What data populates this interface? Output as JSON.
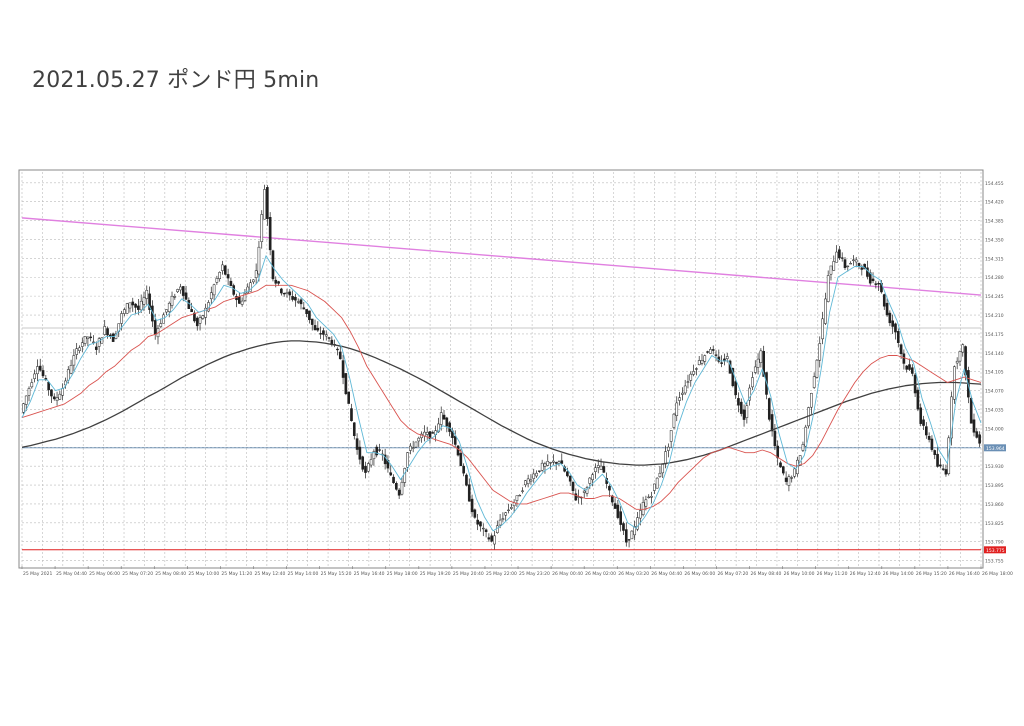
{
  "page_title": "2021.05.27  ポンド円 5min",
  "chart_data": {
    "type": "line",
    "title": "2021.05.27  ポンド円 5min",
    "xlabel": "",
    "ylabel": "",
    "grid": true,
    "ylim": [
      153.745,
      154.475
    ],
    "price_ticks": [
      "154.455",
      "154.420",
      "154.385",
      "154.350",
      "154.315",
      "154.280",
      "154.245",
      "154.210",
      "154.175",
      "154.140",
      "154.105",
      "154.070",
      "154.035",
      "154.000",
      "153.965",
      "153.930",
      "153.895",
      "153.860",
      "153.825",
      "153.790",
      "153.755"
    ],
    "x_tick_labels": [
      "25 May 2021",
      "25 May 04:40",
      "25 May 06:00",
      "25 May 07:20",
      "25 May 08:40",
      "25 May 10:00",
      "25 May 11:20",
      "25 May 12:40",
      "25 May 14:00",
      "25 May 15:20",
      "25 May 16:40",
      "25 May 18:00",
      "25 May 19:20",
      "25 May 20:40",
      "25 May 22:00",
      "25 May 23:20",
      "26 May 00:40",
      "26 May 02:00",
      "26 May 03:20",
      "26 May 04:40",
      "26 May 06:00",
      "26 May 07:20",
      "26 May 08:40",
      "26 May 10:00",
      "26 May 11:20",
      "26 May 12:40",
      "26 May 14:00",
      "26 May 15:20",
      "26 May 16:40",
      "26 May 18:00"
    ],
    "current_price": "153.964",
    "current_price_value": 153.964,
    "support_price": "153.775",
    "support_price_value": 153.775,
    "colors": {
      "candles": "#202020",
      "fast_ma": "#5fb8d6",
      "mid_ma": "#d9534f",
      "slow_ma": "#404040",
      "trendline": "#e080e0",
      "support": "#e02020",
      "current": "#6a8fb5",
      "grid": "#bbbbbb",
      "hline": "#c8c8c8"
    },
    "trendline": {
      "start": 154.39,
      "end": 154.247
    },
    "horizontal_level": 154.186,
    "price_path": [
      154.03,
      154.075,
      154.12,
      154.085,
      154.05,
      154.075,
      154.12,
      154.155,
      154.17,
      154.15,
      154.185,
      154.165,
      154.21,
      154.235,
      154.22,
      154.25,
      154.175,
      154.21,
      154.24,
      154.265,
      154.225,
      154.19,
      154.22,
      154.265,
      154.3,
      154.26,
      154.23,
      154.26,
      154.29,
      154.445,
      154.28,
      154.255,
      154.245,
      154.235,
      154.215,
      154.18,
      154.175,
      154.16,
      154.13,
      154.04,
      153.96,
      153.915,
      153.96,
      153.95,
      153.91,
      153.88,
      153.955,
      153.975,
      153.99,
      153.985,
      154.025,
      154.0,
      153.955,
      153.89,
      153.83,
      153.81,
      153.79,
      153.83,
      153.85,
      153.87,
      153.9,
      153.915,
      153.93,
      153.935,
      153.94,
      153.91,
      153.87,
      153.88,
      153.92,
      153.93,
      153.88,
      153.84,
      153.79,
      153.815,
      153.86,
      153.88,
      153.92,
      153.97,
      154.05,
      154.08,
      154.11,
      154.13,
      154.15,
      154.12,
      154.13,
      154.06,
      154.02,
      154.1,
      154.14,
      154.02,
      153.94,
      153.9,
      153.92,
      153.97,
      154.07,
      154.16,
      154.28,
      154.33,
      154.3,
      154.31,
      154.3,
      154.275,
      154.27,
      154.21,
      154.18,
      154.12,
      154.1,
      154.01,
      153.98,
      153.93,
      153.92,
      154.12,
      154.15,
      154.01,
      153.975
    ],
    "fast_ma_path": [
      154.02,
      154.05,
      154.09,
      154.09,
      154.07,
      154.075,
      154.1,
      154.13,
      154.155,
      154.16,
      154.17,
      154.17,
      154.19,
      154.21,
      154.215,
      154.23,
      154.2,
      154.205,
      154.22,
      154.24,
      154.23,
      154.215,
      154.22,
      154.24,
      154.265,
      154.26,
      154.25,
      154.255,
      154.27,
      154.32,
      154.295,
      154.275,
      154.26,
      154.245,
      154.23,
      154.205,
      154.19,
      154.175,
      154.15,
      154.09,
      154.02,
      153.955,
      153.955,
      153.95,
      153.93,
      153.905,
      153.93,
      153.955,
      153.975,
      153.985,
      154.005,
      154.0,
      153.975,
      153.925,
      153.87,
      153.835,
      153.81,
      153.82,
      153.835,
      153.855,
      153.88,
      153.9,
      153.92,
      153.93,
      153.935,
      153.92,
      153.895,
      153.885,
      153.9,
      153.915,
      153.895,
      153.865,
      153.825,
      153.815,
      153.835,
      153.86,
      153.895,
      153.94,
      154.005,
      154.05,
      154.085,
      154.11,
      154.135,
      154.125,
      154.125,
      154.085,
      154.045,
      154.07,
      154.11,
      154.06,
      153.99,
      153.935,
      153.925,
      153.95,
      154.02,
      154.11,
      154.215,
      154.28,
      154.29,
      154.3,
      154.3,
      154.285,
      154.275,
      154.235,
      154.2,
      154.15,
      154.12,
      154.055,
      154.01,
      153.96,
      153.935,
      154.05,
      154.11,
      154.05,
      154.01
    ],
    "mid_ma_path": [
      154.02,
      154.025,
      154.03,
      154.035,
      154.04,
      154.045,
      154.055,
      154.065,
      154.08,
      154.09,
      154.105,
      154.115,
      154.13,
      154.145,
      154.155,
      154.17,
      154.175,
      154.185,
      154.195,
      154.205,
      154.21,
      154.215,
      154.22,
      154.225,
      154.235,
      154.24,
      154.245,
      154.25,
      154.255,
      154.265,
      154.265,
      154.265,
      154.265,
      154.26,
      154.255,
      154.245,
      154.235,
      154.22,
      154.205,
      154.18,
      154.15,
      154.115,
      154.09,
      154.065,
      154.04,
      154.015,
      154.0,
      153.99,
      153.985,
      153.98,
      153.975,
      153.97,
      153.96,
      153.945,
      153.925,
      153.905,
      153.885,
      153.875,
      153.865,
      153.86,
      153.86,
      153.865,
      153.87,
      153.875,
      153.88,
      153.88,
      153.875,
      153.87,
      153.87,
      153.875,
      153.875,
      153.87,
      153.86,
      153.85,
      153.85,
      153.855,
      153.865,
      153.88,
      153.9,
      153.915,
      153.93,
      153.945,
      153.955,
      153.96,
      153.965,
      153.96,
      153.955,
      153.955,
      153.96,
      153.955,
      153.945,
      153.935,
      153.93,
      153.935,
      153.95,
      153.975,
      154.005,
      154.035,
      154.06,
      154.085,
      154.105,
      154.12,
      154.13,
      154.135,
      154.135,
      154.13,
      154.125,
      154.115,
      154.105,
      154.095,
      154.085,
      154.09,
      154.095,
      154.09,
      154.085
    ],
    "slow_ma_path": [
      153.965,
      153.968,
      153.972,
      153.976,
      153.98,
      153.985,
      153.99,
      153.996,
      154.002,
      154.009,
      154.016,
      154.024,
      154.032,
      154.041,
      154.05,
      154.059,
      154.067,
      154.076,
      154.085,
      154.094,
      154.102,
      154.11,
      154.118,
      154.125,
      154.132,
      154.138,
      154.143,
      154.148,
      154.152,
      154.156,
      154.159,
      154.161,
      154.162,
      154.162,
      154.161,
      154.16,
      154.158,
      154.155,
      154.152,
      154.148,
      154.143,
      154.137,
      154.131,
      154.124,
      154.117,
      154.11,
      154.102,
      154.094,
      154.086,
      154.077,
      154.068,
      154.059,
      154.05,
      154.041,
      154.032,
      154.023,
      154.014,
      154.005,
      153.997,
      153.989,
      153.981,
      153.974,
      153.968,
      153.962,
      153.957,
      153.952,
      153.948,
      153.944,
      153.941,
      153.938,
      153.936,
      153.934,
      153.933,
      153.932,
      153.932,
      153.933,
      153.934,
      153.936,
      153.939,
      153.942,
      153.946,
      153.95,
      153.955,
      153.96,
      153.966,
      153.972,
      153.978,
      153.984,
      153.99,
      153.996,
      154.002,
      154.008,
      154.014,
      154.02,
      154.026,
      154.032,
      154.038,
      154.044,
      154.05,
      154.055,
      154.06,
      154.065,
      154.069,
      154.073,
      154.076,
      154.079,
      154.081,
      154.083,
      154.084,
      154.085,
      154.085,
      154.085,
      154.084,
      154.083,
      154.082
    ]
  }
}
